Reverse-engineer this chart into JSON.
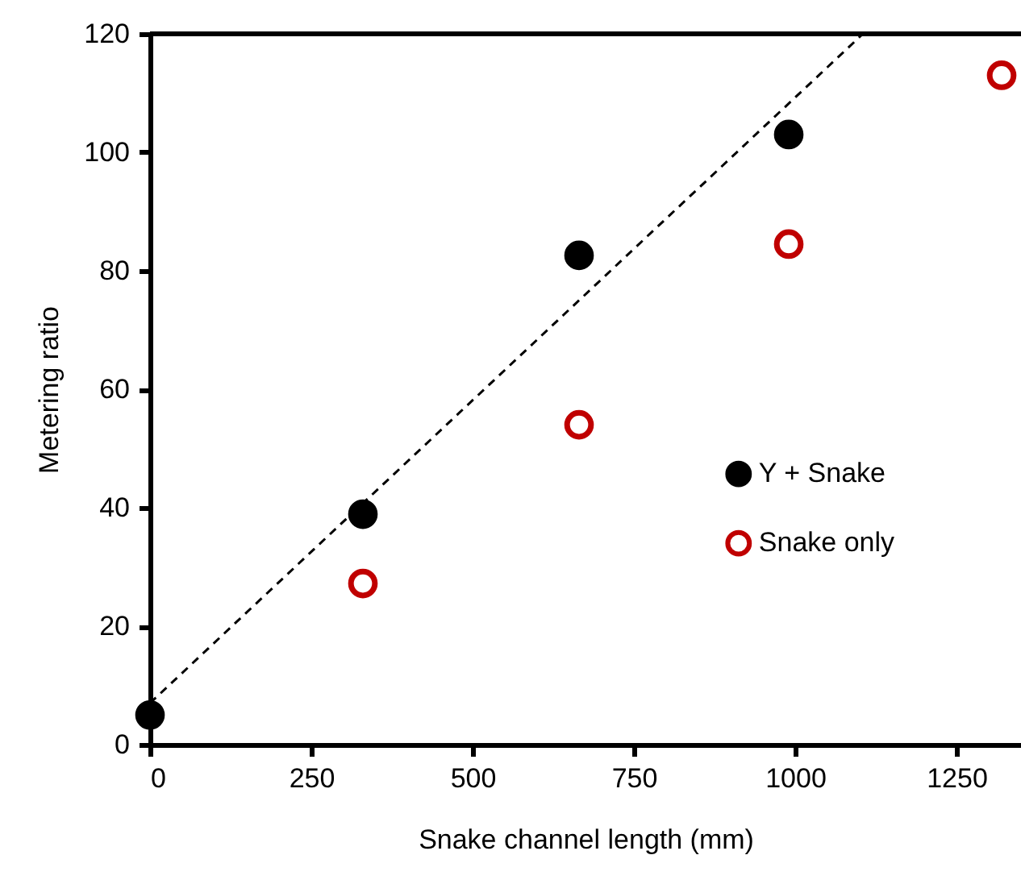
{
  "chart_data": {
    "type": "scatter",
    "xlabel": "Snake channel length (mm)",
    "ylabel": "Metering ratio",
    "xlim": [
      0,
      1350
    ],
    "xticks": [
      0,
      250,
      500,
      750,
      1000,
      1250
    ],
    "ylim": [
      0,
      120
    ],
    "yticks": [
      0,
      20,
      40,
      60,
      80,
      100,
      120
    ],
    "grid": false,
    "legend": "right",
    "series": [
      {
        "name": "Y + Snake",
        "color": "#000000",
        "marker": "circle",
        "x": [
          0,
          330,
          665,
          990
        ],
        "values": [
          5,
          38.9,
          82.6,
          103
        ]
      },
      {
        "name": "Snake only",
        "color": "#c00000",
        "marker": "circle",
        "x": [
          330,
          665,
          990,
          1320
        ],
        "values": [
          27.2,
          54,
          84.5,
          113
        ]
      },
      {
        "type": "line",
        "color": "#000000",
        "marker": "none",
        "line_style": "dashed",
        "x": [
          0,
          1105
        ],
        "values": [
          7,
          120
        ]
      }
    ]
  }
}
